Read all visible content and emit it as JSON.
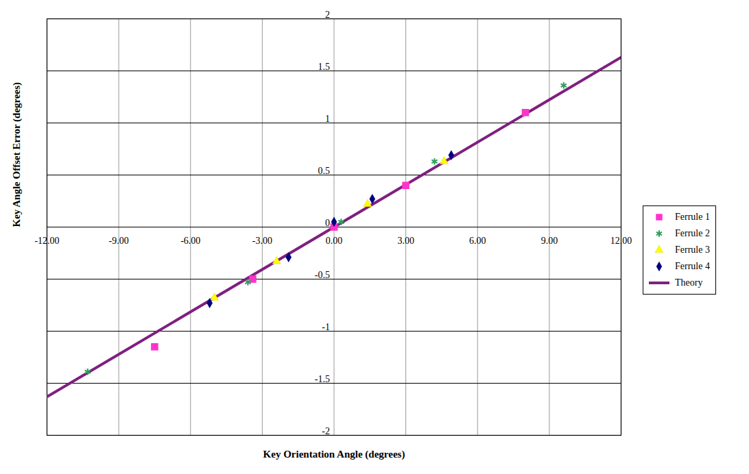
{
  "chart_data": {
    "type": "scatter",
    "x_label": "Key Orientation Angle (degrees)",
    "y_label": "Key Angle Offset Error (degrees)",
    "xlim": [
      -12,
      12
    ],
    "ylim": [
      -2,
      2
    ],
    "xticks": [
      {
        "value": -12,
        "label": "-12.00"
      },
      {
        "value": -9,
        "label": "-9.00"
      },
      {
        "value": -6,
        "label": "-6.00"
      },
      {
        "value": -3,
        "label": "-3.00"
      },
      {
        "value": 0,
        "label": "0.00"
      },
      {
        "value": 3,
        "label": "3.00"
      },
      {
        "value": 6,
        "label": "6.00"
      },
      {
        "value": 9,
        "label": "9.00"
      },
      {
        "value": 12,
        "label": "12.00"
      }
    ],
    "yticks": [
      -2,
      -1.5,
      -1,
      -0.5,
      0,
      0.5,
      1,
      1.5,
      2
    ],
    "grid": true,
    "legend": "right",
    "series": [
      {
        "name": "Ferrule 1",
        "type": "scatter",
        "marker": "square",
        "color": "#ff33cc",
        "x": [
          -7.5,
          -3.4,
          0,
          3,
          8
        ],
        "values": [
          -1.15,
          -0.5,
          0,
          0.4,
          1.1
        ]
      },
      {
        "name": "Ferrule 2",
        "type": "scatter",
        "marker": "asterisk",
        "color": "#2e9e5b",
        "x": [
          -10.3,
          -3.6,
          0.3,
          4.2,
          9.6
        ],
        "values": [
          -1.39,
          -0.53,
          0.05,
          0.63,
          1.36
        ]
      },
      {
        "name": "Ferrule 3",
        "type": "scatter",
        "marker": "triangle",
        "color": "#ffff00",
        "x": [
          -5,
          -2.4,
          1.4,
          4.6
        ],
        "values": [
          -0.68,
          -0.33,
          0.22,
          0.63
        ]
      },
      {
        "name": "Ferrule 4",
        "type": "scatter",
        "marker": "diamond",
        "color": "#000080",
        "x": [
          -5.2,
          -1.9,
          0,
          1.6,
          4.9
        ],
        "values": [
          -0.73,
          -0.29,
          0.05,
          0.27,
          0.69
        ]
      },
      {
        "name": "Theory",
        "type": "line",
        "line_style": "solid",
        "color": "#7f1f80",
        "x": [
          -12,
          12
        ],
        "values": [
          -1.63,
          1.63
        ]
      }
    ]
  }
}
